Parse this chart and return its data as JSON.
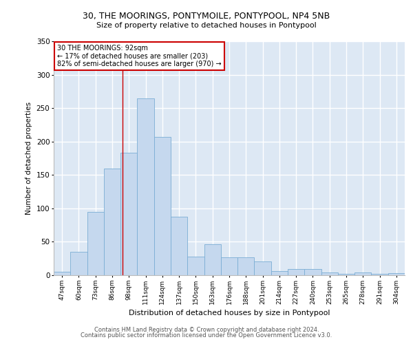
{
  "title_line1": "30, THE MOORINGS, PONTYMOILE, PONTYPOOL, NP4 5NB",
  "title_line2": "Size of property relative to detached houses in Pontypool",
  "xlabel": "Distribution of detached houses by size in Pontypool",
  "ylabel": "Number of detached properties",
  "categories": [
    "47sqm",
    "60sqm",
    "73sqm",
    "86sqm",
    "98sqm",
    "111sqm",
    "124sqm",
    "137sqm",
    "150sqm",
    "163sqm",
    "176sqm",
    "188sqm",
    "201sqm",
    "214sqm",
    "227sqm",
    "240sqm",
    "253sqm",
    "265sqm",
    "278sqm",
    "291sqm",
    "304sqm"
  ],
  "values": [
    5,
    35,
    95,
    160,
    183,
    265,
    207,
    88,
    28,
    46,
    27,
    27,
    21,
    6,
    9,
    9,
    4,
    2,
    4,
    2,
    3
  ],
  "bar_color": "#c5d8ee",
  "bar_edge_color": "#7aadd4",
  "background_color": "#dde8f4",
  "grid_color": "#ffffff",
  "annotation_text": "30 THE MOORINGS: 92sqm\n← 17% of detached houses are smaller (203)\n82% of semi-detached houses are larger (970) →",
  "annotation_box_color": "#ffffff",
  "annotation_box_edge": "#cc0000",
  "red_line_x": 3.62,
  "ylim": [
    0,
    350
  ],
  "yticks": [
    0,
    50,
    100,
    150,
    200,
    250,
    300,
    350
  ],
  "footer_line1": "Contains HM Land Registry data © Crown copyright and database right 2024.",
  "footer_line2": "Contains public sector information licensed under the Open Government Licence v3.0."
}
